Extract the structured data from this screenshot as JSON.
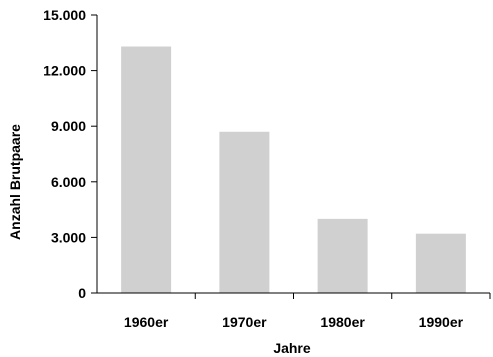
{
  "chart_data": {
    "type": "bar",
    "categories": [
      "1960er",
      "1970er",
      "1980er",
      "1990er"
    ],
    "values": [
      13300,
      8700,
      4000,
      3200
    ],
    "title": "",
    "xlabel": "Jahre",
    "ylabel": "Anzahl Brutpaare",
    "ylim": [
      0,
      15000
    ],
    "yticks": [
      0,
      3000,
      6000,
      9000,
      12000,
      15000
    ],
    "ytick_labels": [
      "0",
      "3.000",
      "6.000",
      "9.000",
      "12.000",
      "15.000"
    ],
    "grid": false,
    "legend": "none",
    "bar_color": "#d0d0d0",
    "axis_color": "#000000"
  }
}
